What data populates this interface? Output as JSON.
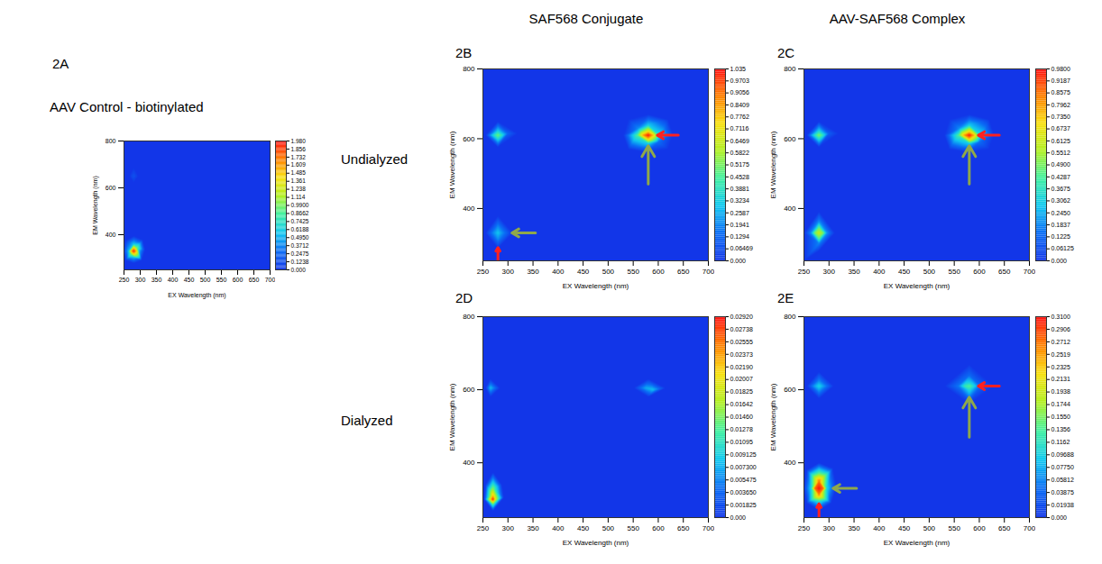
{
  "column_titles": [
    "SAF568 Conjugate",
    "AAV-SAF568 Complex"
  ],
  "row_labels": [
    "Undialyzed",
    "Dialyzed"
  ],
  "chart_data": [
    {
      "panel": "2A",
      "type": "heatmap",
      "title": "AAV Control - biotinylated",
      "x_label": "EX Wavelength (nm)",
      "y_label": "EM Wavelength (nm)",
      "xlim": [
        250,
        700
      ],
      "xticks": [
        250,
        300,
        350,
        400,
        450,
        500,
        550,
        600,
        650,
        700
      ],
      "ylim": [
        250,
        800
      ],
      "yticks": [
        400,
        600,
        800
      ],
      "colorbar": {
        "range": [
          0,
          1.98
        ],
        "ticks": [
          {
            "value": 0,
            "label": "0.000"
          },
          0.1238,
          0.2475,
          0.3712,
          {
            "value": 0.495,
            "label": "0.4950"
          },
          0.6188,
          0.7425,
          0.8662,
          {
            "value": 0.99,
            "label": "0.9900"
          },
          1.114,
          1.238,
          1.361,
          1.485,
          1.609,
          1.732,
          1.856,
          {
            "value": 1.98,
            "label": "1.980"
          }
        ]
      },
      "cells": [
        [
          280,
          330,
          1.98
        ],
        [
          271,
          330,
          1.5
        ],
        [
          289,
          330,
          1.5
        ],
        [
          280,
          316,
          1.4
        ],
        [
          280,
          346,
          1.4
        ],
        [
          263,
          330,
          0.5
        ],
        [
          297,
          332,
          0.5
        ],
        [
          280,
          302,
          0.5
        ],
        [
          280,
          362,
          0.55
        ],
        [
          272,
          318,
          1.0
        ],
        [
          289,
          344,
          1.0
        ],
        [
          248,
          330,
          0
        ],
        [
          315,
          335,
          0
        ],
        [
          280,
          278,
          0
        ],
        [
          280,
          395,
          0
        ],
        [
          255,
          290,
          0
        ],
        [
          305,
          290,
          0
        ],
        [
          255,
          375,
          0
        ],
        [
          308,
          378,
          0
        ],
        [
          280,
          650,
          0.15
        ],
        [
          265,
          650,
          0
        ],
        [
          295,
          650,
          0
        ],
        [
          280,
          620,
          0
        ],
        [
          280,
          690,
          0
        ],
        [
          250,
          250,
          0
        ],
        [
          700,
          250,
          0
        ],
        [
          250,
          800,
          0
        ],
        [
          700,
          800,
          0
        ],
        [
          475,
          525,
          0
        ]
      ]
    },
    {
      "panel": "2B",
      "type": "heatmap",
      "x_label": "EX Wavelength (nm)",
      "y_label": "EM Wavelength (nm)",
      "xlim": [
        250,
        700
      ],
      "xticks": [
        250,
        300,
        350,
        400,
        450,
        500,
        550,
        600,
        650,
        700
      ],
      "ylim": [
        250,
        800
      ],
      "yticks": [
        400,
        600,
        800
      ],
      "colorbar": {
        "range": [
          0,
          1.035
        ],
        "ticks": [
          {
            "value": 0,
            "label": "0.000"
          },
          0.06469,
          0.1294,
          0.1941,
          0.2587,
          0.3234,
          0.3881,
          0.4528,
          0.5175,
          0.5822,
          0.6469,
          0.7116,
          0.7762,
          0.8409,
          0.9056,
          0.9703,
          1.035
        ]
      },
      "cells": [
        [
          580,
          610,
          1.035
        ],
        [
          570,
          610,
          0.85
        ],
        [
          590,
          610,
          0.8
        ],
        [
          580,
          598,
          0.75
        ],
        [
          580,
          622,
          0.72
        ],
        [
          558,
          610,
          0.45
        ],
        [
          602,
          610,
          0.35
        ],
        [
          580,
          585,
          0.3
        ],
        [
          580,
          640,
          0.3
        ],
        [
          560,
          630,
          0.2
        ],
        [
          600,
          590,
          0.15
        ],
        [
          530,
          610,
          0
        ],
        [
          630,
          610,
          0
        ],
        [
          580,
          560,
          0
        ],
        [
          580,
          670,
          0
        ],
        [
          540,
          570,
          0
        ],
        [
          620,
          570,
          0
        ],
        [
          540,
          655,
          0
        ],
        [
          620,
          655,
          0
        ],
        [
          280,
          610,
          0.5
        ],
        [
          271,
          610,
          0.35
        ],
        [
          289,
          610,
          0.35
        ],
        [
          280,
          596,
          0.3
        ],
        [
          280,
          624,
          0.3
        ],
        [
          300,
          615,
          0.12
        ],
        [
          255,
          610,
          0
        ],
        [
          320,
          615,
          0
        ],
        [
          280,
          575,
          0
        ],
        [
          280,
          650,
          0
        ],
        [
          280,
          330,
          0.3
        ],
        [
          271,
          330,
          0.2
        ],
        [
          289,
          330,
          0.2
        ],
        [
          280,
          312,
          0.2
        ],
        [
          280,
          348,
          0.2
        ],
        [
          255,
          330,
          0
        ],
        [
          310,
          330,
          0
        ],
        [
          280,
          285,
          0
        ],
        [
          280,
          380,
          0
        ],
        [
          250,
          250,
          0
        ],
        [
          700,
          250,
          0
        ],
        [
          250,
          800,
          0
        ],
        [
          700,
          800,
          0
        ],
        [
          475,
          525,
          0
        ]
      ]
    },
    {
      "panel": "2C",
      "type": "heatmap",
      "x_label": "EX Wavelength (nm)",
      "y_label": "EM Wavelength (nm)",
      "xlim": [
        250,
        700
      ],
      "xticks": [
        250,
        300,
        350,
        400,
        450,
        500,
        550,
        600,
        650,
        700
      ],
      "ylim": [
        250,
        800
      ],
      "yticks": [
        400,
        600,
        800
      ],
      "colorbar": {
        "range": [
          0,
          0.98
        ],
        "ticks": [
          {
            "value": 0,
            "label": "0.000"
          },
          0.06125,
          0.1225,
          0.1837,
          {
            "value": 0.245,
            "label": "0.2450"
          },
          0.3062,
          0.3675,
          0.4287,
          {
            "value": 0.49,
            "label": "0.4900"
          },
          0.5512,
          0.6125,
          0.6737,
          {
            "value": 0.735,
            "label": "0.7350"
          },
          0.7962,
          0.8575,
          0.9187,
          {
            "value": 0.98,
            "label": "0.9800"
          }
        ]
      },
      "cells": [
        [
          580,
          610,
          0.98
        ],
        [
          570,
          610,
          0.8
        ],
        [
          590,
          610,
          0.76
        ],
        [
          580,
          598,
          0.72
        ],
        [
          580,
          622,
          0.68
        ],
        [
          558,
          610,
          0.42
        ],
        [
          602,
          610,
          0.33
        ],
        [
          580,
          585,
          0.28
        ],
        [
          580,
          640,
          0.28
        ],
        [
          560,
          630,
          0.19
        ],
        [
          600,
          590,
          0.14
        ],
        [
          530,
          610,
          0
        ],
        [
          630,
          610,
          0
        ],
        [
          580,
          560,
          0
        ],
        [
          580,
          670,
          0
        ],
        [
          540,
          570,
          0
        ],
        [
          620,
          570,
          0
        ],
        [
          540,
          655,
          0
        ],
        [
          620,
          655,
          0
        ],
        [
          280,
          610,
          0.5
        ],
        [
          271,
          610,
          0.35
        ],
        [
          289,
          610,
          0.35
        ],
        [
          280,
          596,
          0.3
        ],
        [
          280,
          624,
          0.3
        ],
        [
          300,
          615,
          0.1
        ],
        [
          255,
          610,
          0
        ],
        [
          320,
          615,
          0
        ],
        [
          280,
          575,
          0
        ],
        [
          280,
          650,
          0
        ],
        [
          280,
          330,
          0.6
        ],
        [
          271,
          330,
          0.48
        ],
        [
          289,
          330,
          0.48
        ],
        [
          280,
          314,
          0.45
        ],
        [
          280,
          346,
          0.45
        ],
        [
          264,
          330,
          0.2
        ],
        [
          296,
          330,
          0.2
        ],
        [
          280,
          300,
          0.18
        ],
        [
          280,
          362,
          0.2
        ],
        [
          250,
          330,
          0
        ],
        [
          312,
          330,
          0
        ],
        [
          280,
          278,
          0
        ],
        [
          280,
          392,
          0
        ],
        [
          250,
          250,
          0
        ],
        [
          700,
          250,
          0
        ],
        [
          250,
          800,
          0
        ],
        [
          700,
          800,
          0
        ],
        [
          475,
          525,
          0
        ]
      ]
    },
    {
      "panel": "2D",
      "type": "heatmap",
      "x_label": "EX Wavelength (nm)",
      "y_label": "EM Wavelength (nm)",
      "xlim": [
        250,
        700
      ],
      "xticks": [
        250,
        300,
        350,
        400,
        450,
        500,
        550,
        600,
        650,
        700
      ],
      "ylim": [
        250,
        800
      ],
      "yticks": [
        400,
        600,
        800
      ],
      "colorbar": {
        "range": [
          0,
          0.0292
        ],
        "ticks": [
          {
            "value": 0,
            "label": "0.000"
          },
          0.001825,
          {
            "value": 0.00365,
            "label": "0.003650"
          },
          0.005475,
          {
            "value": 0.0073,
            "label": "0.007300"
          },
          0.009125,
          0.01095,
          0.01278,
          {
            "value": 0.0146,
            "label": "0.01460"
          },
          0.01642,
          0.01825,
          0.02007,
          {
            "value": 0.0219,
            "label": "0.02190"
          },
          0.02373,
          0.02555,
          0.02738,
          {
            "value": 0.0292,
            "label": "0.02920"
          }
        ]
      },
      "cells": [
        [
          270,
          300,
          0.0292
        ],
        [
          264,
          300,
          0.02
        ],
        [
          276,
          300,
          0.018
        ],
        [
          270,
          312,
          0.022
        ],
        [
          270,
          330,
          0.015
        ],
        [
          270,
          350,
          0.008
        ],
        [
          270,
          285,
          0.012
        ],
        [
          252,
          300,
          0
        ],
        [
          292,
          305,
          0
        ],
        [
          270,
          268,
          0
        ],
        [
          270,
          375,
          0
        ],
        [
          255,
          340,
          0
        ],
        [
          288,
          340,
          0
        ],
        [
          265,
          605,
          0.008
        ],
        [
          255,
          605,
          0
        ],
        [
          285,
          605,
          0
        ],
        [
          265,
          580,
          0
        ],
        [
          265,
          630,
          0
        ],
        [
          575,
          605,
          0.007
        ],
        [
          590,
          600,
          0.008
        ],
        [
          550,
          605,
          0
        ],
        [
          615,
          605,
          0
        ],
        [
          580,
          580,
          0
        ],
        [
          580,
          630,
          0
        ],
        [
          250,
          250,
          0
        ],
        [
          700,
          250,
          0
        ],
        [
          250,
          800,
          0
        ],
        [
          700,
          800,
          0
        ],
        [
          475,
          525,
          0
        ]
      ]
    },
    {
      "panel": "2E",
      "type": "heatmap",
      "x_label": "EX Wavelength (nm)",
      "y_label": "EM Wavelength (nm)",
      "xlim": [
        250,
        700
      ],
      "xticks": [
        250,
        300,
        350,
        400,
        450,
        500,
        550,
        600,
        650,
        700
      ],
      "ylim": [
        250,
        800
      ],
      "yticks": [
        400,
        600,
        800
      ],
      "colorbar": {
        "range": [
          0,
          0.31
        ],
        "ticks": [
          {
            "value": 0,
            "label": "0.000"
          },
          0.01938,
          0.03875,
          0.05812,
          {
            "value": 0.0775,
            "label": "0.07750"
          },
          0.09688,
          0.1162,
          0.1356,
          {
            "value": 0.155,
            "label": "0.1550"
          },
          0.1744,
          0.1938,
          0.2131,
          0.2325,
          0.2519,
          0.2712,
          0.2906,
          {
            "value": 0.31,
            "label": "0.3100"
          }
        ]
      },
      "cells": [
        [
          280,
          330,
          0.31
        ],
        [
          271,
          330,
          0.27
        ],
        [
          289,
          330,
          0.27
        ],
        [
          280,
          312,
          0.26
        ],
        [
          280,
          350,
          0.27
        ],
        [
          280,
          370,
          0.15
        ],
        [
          280,
          295,
          0.12
        ],
        [
          264,
          330,
          0.1
        ],
        [
          296,
          330,
          0.1
        ],
        [
          250,
          330,
          0
        ],
        [
          315,
          335,
          0
        ],
        [
          280,
          270,
          0
        ],
        [
          280,
          400,
          0
        ],
        [
          255,
          290,
          0
        ],
        [
          305,
          290,
          0
        ],
        [
          255,
          380,
          0
        ],
        [
          308,
          385,
          0
        ],
        [
          580,
          610,
          0.14
        ],
        [
          570,
          610,
          0.12
        ],
        [
          590,
          610,
          0.1
        ],
        [
          580,
          598,
          0.1
        ],
        [
          580,
          622,
          0.09
        ],
        [
          558,
          610,
          0.05
        ],
        [
          602,
          610,
          0.04
        ],
        [
          580,
          640,
          0.04
        ],
        [
          530,
          610,
          0
        ],
        [
          630,
          610,
          0
        ],
        [
          580,
          560,
          0
        ],
        [
          580,
          670,
          0
        ],
        [
          280,
          610,
          0.1
        ],
        [
          271,
          610,
          0.07
        ],
        [
          289,
          610,
          0.07
        ],
        [
          280,
          596,
          0.06
        ],
        [
          280,
          624,
          0.06
        ],
        [
          255,
          610,
          0
        ],
        [
          310,
          610,
          0
        ],
        [
          280,
          575,
          0
        ],
        [
          280,
          650,
          0
        ],
        [
          250,
          250,
          0
        ],
        [
          700,
          250,
          0
        ],
        [
          250,
          800,
          0
        ],
        [
          700,
          800,
          0
        ],
        [
          475,
          525,
          0
        ]
      ]
    }
  ]
}
